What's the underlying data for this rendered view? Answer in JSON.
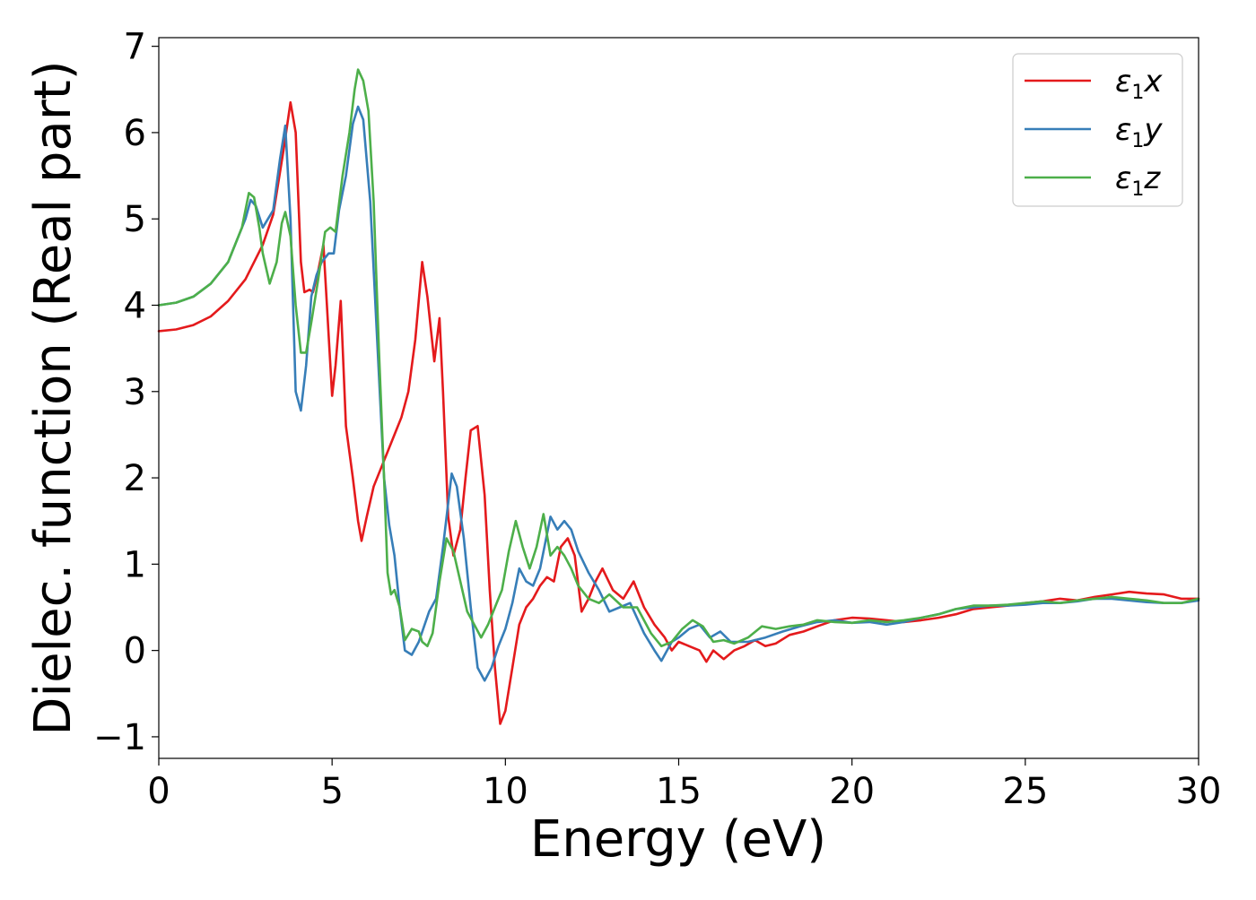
{
  "chart_data": {
    "type": "line",
    "title": "",
    "xlabel": "Energy (eV)",
    "ylabel": "Dielec. function (Real part)",
    "xlim": [
      0,
      30
    ],
    "ylim": [
      -1.25,
      7.1
    ],
    "x_ticks": [
      0,
      5,
      10,
      15,
      20,
      25,
      30
    ],
    "y_ticks": [
      -1,
      0,
      1,
      2,
      3,
      4,
      5,
      6,
      7
    ],
    "grid": false,
    "legend_position": "top-right",
    "series": [
      {
        "name": "ε1x",
        "legend_main": "ε",
        "legend_sub": "1",
        "legend_suffix": "x",
        "color": "#e41a1c",
        "x": [
          0,
          0.5,
          1,
          1.5,
          2,
          2.5,
          3,
          3.3,
          3.6,
          3.8,
          3.95,
          4.1,
          4.2,
          4.35,
          4.45,
          4.6,
          4.75,
          4.85,
          5.0,
          5.1,
          5.25,
          5.4,
          5.6,
          5.75,
          5.85,
          6.0,
          6.2,
          6.5,
          6.8,
          7.0,
          7.2,
          7.4,
          7.6,
          7.75,
          7.95,
          8.1,
          8.2,
          8.35,
          8.5,
          8.7,
          8.85,
          9.0,
          9.2,
          9.4,
          9.55,
          9.7,
          9.85,
          10.0,
          10.2,
          10.4,
          10.6,
          10.8,
          11.0,
          11.2,
          11.4,
          11.6,
          11.8,
          12.0,
          12.2,
          12.4,
          12.6,
          12.8,
          13.1,
          13.4,
          13.7,
          14.0,
          14.3,
          14.6,
          14.8,
          15.0,
          15.3,
          15.6,
          15.8,
          16.0,
          16.3,
          16.6,
          16.9,
          17.2,
          17.5,
          17.8,
          18.2,
          18.6,
          19.0,
          19.5,
          20.0,
          20.5,
          21.0,
          21.5,
          22.0,
          22.5,
          23.0,
          23.5,
          24.0,
          24.5,
          25.0,
          25.5,
          26.0,
          26.5,
          27.0,
          27.5,
          28.0,
          28.5,
          29.0,
          29.5,
          30.0
        ],
        "y": [
          3.7,
          3.72,
          3.77,
          3.87,
          4.05,
          4.3,
          4.7,
          5.05,
          5.8,
          6.35,
          6.0,
          4.5,
          4.15,
          4.18,
          4.15,
          4.4,
          4.7,
          4.0,
          2.95,
          3.3,
          4.05,
          2.6,
          2.0,
          1.5,
          1.27,
          1.55,
          1.9,
          2.2,
          2.5,
          2.7,
          3.0,
          3.6,
          4.5,
          4.1,
          3.35,
          3.85,
          3.0,
          1.55,
          1.1,
          1.4,
          2.0,
          2.55,
          2.6,
          1.8,
          0.7,
          -0.2,
          -0.85,
          -0.7,
          -0.2,
          0.3,
          0.5,
          0.6,
          0.75,
          0.85,
          0.8,
          1.2,
          1.3,
          1.1,
          0.45,
          0.6,
          0.8,
          0.95,
          0.7,
          0.6,
          0.8,
          0.5,
          0.3,
          0.15,
          0.0,
          0.1,
          0.05,
          0.0,
          -0.13,
          0.0,
          -0.1,
          0.0,
          0.05,
          0.12,
          0.05,
          0.08,
          0.18,
          0.22,
          0.28,
          0.35,
          0.38,
          0.37,
          0.35,
          0.33,
          0.35,
          0.38,
          0.42,
          0.48,
          0.5,
          0.52,
          0.55,
          0.57,
          0.6,
          0.58,
          0.62,
          0.65,
          0.68,
          0.66,
          0.65,
          0.6,
          0.6
        ]
      },
      {
        "name": "ε1y",
        "legend_main": "ε",
        "legend_sub": "1",
        "legend_suffix": "y",
        "color": "#377eb8",
        "x": [
          0,
          0.5,
          1,
          1.5,
          2,
          2.5,
          2.65,
          2.8,
          3.0,
          3.3,
          3.5,
          3.65,
          3.8,
          3.95,
          4.1,
          4.25,
          4.4,
          4.55,
          4.7,
          4.9,
          5.05,
          5.2,
          5.4,
          5.6,
          5.75,
          5.9,
          6.1,
          6.3,
          6.5,
          6.65,
          6.8,
          6.95,
          7.1,
          7.3,
          7.5,
          7.8,
          8.0,
          8.2,
          8.45,
          8.6,
          8.8,
          9.0,
          9.2,
          9.4,
          9.6,
          9.8,
          10.0,
          10.2,
          10.4,
          10.6,
          10.8,
          11.0,
          11.3,
          11.5,
          11.7,
          11.9,
          12.1,
          12.4,
          12.7,
          13.0,
          13.3,
          13.6,
          14.0,
          14.3,
          14.5,
          14.8,
          15.0,
          15.3,
          15.6,
          15.9,
          16.2,
          16.5,
          17.0,
          17.5,
          18.0,
          18.5,
          19.0,
          19.5,
          20.0,
          20.5,
          21.0,
          21.5,
          22.0,
          22.5,
          23.0,
          23.5,
          24.0,
          24.5,
          25.0,
          25.5,
          26.0,
          26.5,
          27.0,
          27.5,
          28.0,
          28.5,
          29.0,
          29.5,
          30.0
        ],
        "y": [
          4.0,
          4.03,
          4.1,
          4.25,
          4.5,
          5.0,
          5.22,
          5.15,
          4.9,
          5.1,
          5.7,
          6.08,
          5.0,
          3.0,
          2.78,
          3.3,
          4.1,
          4.35,
          4.5,
          4.6,
          4.6,
          5.1,
          5.5,
          6.1,
          6.3,
          6.15,
          5.2,
          3.6,
          2.0,
          1.45,
          1.1,
          0.5,
          0.0,
          -0.05,
          0.1,
          0.45,
          0.6,
          1.2,
          2.05,
          1.9,
          1.3,
          0.5,
          -0.2,
          -0.35,
          -0.2,
          0.05,
          0.25,
          0.55,
          0.95,
          0.8,
          0.75,
          0.95,
          1.55,
          1.4,
          1.5,
          1.4,
          1.15,
          0.9,
          0.7,
          0.45,
          0.5,
          0.55,
          0.2,
          0.0,
          -0.12,
          0.1,
          0.15,
          0.25,
          0.3,
          0.15,
          0.22,
          0.1,
          0.1,
          0.15,
          0.22,
          0.28,
          0.33,
          0.35,
          0.32,
          0.33,
          0.3,
          0.33,
          0.38,
          0.42,
          0.48,
          0.5,
          0.52,
          0.52,
          0.53,
          0.55,
          0.55,
          0.57,
          0.6,
          0.6,
          0.58,
          0.56,
          0.55,
          0.55,
          0.58
        ]
      },
      {
        "name": "ε1z",
        "legend_main": "ε",
        "legend_sub": "1",
        "legend_suffix": "z",
        "color": "#4daf4a",
        "x": [
          0,
          0.5,
          1,
          1.5,
          2,
          2.4,
          2.6,
          2.75,
          2.9,
          3.0,
          3.2,
          3.4,
          3.55,
          3.65,
          3.8,
          3.95,
          4.1,
          4.25,
          4.4,
          4.6,
          4.8,
          4.95,
          5.1,
          5.3,
          5.5,
          5.65,
          5.75,
          5.9,
          6.05,
          6.2,
          6.35,
          6.5,
          6.6,
          6.7,
          6.8,
          6.95,
          7.1,
          7.3,
          7.5,
          7.6,
          7.75,
          7.9,
          8.1,
          8.3,
          8.5,
          8.7,
          8.9,
          9.1,
          9.3,
          9.5,
          9.7,
          9.9,
          10.1,
          10.3,
          10.5,
          10.7,
          10.9,
          11.1,
          11.3,
          11.5,
          11.7,
          11.9,
          12.1,
          12.4,
          12.7,
          13.0,
          13.4,
          13.8,
          14.2,
          14.5,
          14.8,
          15.1,
          15.4,
          15.7,
          16.0,
          16.3,
          16.6,
          17.0,
          17.4,
          17.8,
          18.2,
          18.6,
          19.0,
          19.5,
          20.0,
          20.5,
          21.0,
          21.5,
          22.0,
          22.5,
          23.0,
          23.5,
          24.0,
          24.5,
          25.0,
          25.5,
          26.0,
          26.5,
          27.0,
          27.5,
          28.0,
          28.5,
          29.0,
          29.5,
          30.0
        ],
        "y": [
          4.0,
          4.03,
          4.1,
          4.25,
          4.5,
          4.9,
          5.3,
          5.25,
          4.9,
          4.6,
          4.25,
          4.5,
          4.95,
          5.08,
          4.8,
          4.0,
          3.45,
          3.45,
          3.8,
          4.3,
          4.85,
          4.9,
          4.85,
          5.5,
          6.0,
          6.5,
          6.73,
          6.6,
          6.25,
          5.2,
          3.5,
          2.0,
          0.9,
          0.65,
          0.7,
          0.5,
          0.12,
          0.25,
          0.22,
          0.1,
          0.05,
          0.2,
          0.8,
          1.3,
          1.15,
          0.8,
          0.45,
          0.3,
          0.15,
          0.3,
          0.5,
          0.7,
          1.15,
          1.5,
          1.2,
          0.95,
          1.2,
          1.58,
          1.1,
          1.2,
          1.1,
          0.95,
          0.75,
          0.6,
          0.55,
          0.65,
          0.5,
          0.5,
          0.2,
          0.05,
          0.1,
          0.25,
          0.35,
          0.28,
          0.1,
          0.12,
          0.08,
          0.15,
          0.28,
          0.25,
          0.28,
          0.3,
          0.35,
          0.33,
          0.32,
          0.35,
          0.33,
          0.35,
          0.38,
          0.42,
          0.48,
          0.52,
          0.52,
          0.53,
          0.55,
          0.57,
          0.55,
          0.58,
          0.6,
          0.62,
          0.6,
          0.58,
          0.55,
          0.55,
          0.6
        ]
      }
    ]
  }
}
